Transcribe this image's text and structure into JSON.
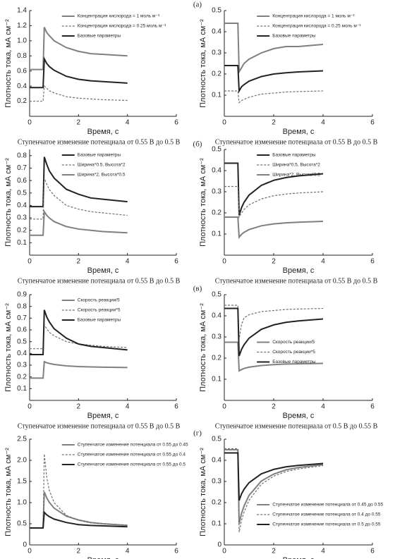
{
  "panel_labels": [
    "(а)",
    "(б)",
    "(в)",
    "(г)"
  ],
  "chart_data": [
    {
      "type": "line",
      "xlabel": "Время, с",
      "ylabel": "Плотность тока, мА см⁻²",
      "caption": "Ступенчатое изменение потенциала от 0.55 В до 0.5 В",
      "legend": "upper right",
      "xlim": [
        0,
        6
      ],
      "xticks": [
        0,
        2,
        4,
        6
      ],
      "ylim": [
        0,
        1.4
      ],
      "yticks": [
        0.2,
        0.4,
        0.6,
        0.8,
        {
          "value": 1,
          "label": "1.0"
        },
        1.2,
        1.4
      ],
      "x": [
        0,
        0.55,
        0.6,
        0.7,
        0.8,
        1,
        1.5,
        2,
        2.5,
        3,
        4
      ],
      "series": [
        {
          "name": "Концентрация кислорода = 1 моль м⁻³",
          "color": "#808080",
          "style": "solid",
          "values": [
            0.62,
            0.62,
            1.18,
            1.11,
            1.07,
            1.0,
            0.91,
            0.86,
            0.83,
            0.82,
            0.8
          ]
        },
        {
          "name": "Концентрация кислорода = 0.25 моль м⁻³",
          "color": "#707070",
          "style": "dashed",
          "values": [
            0.2,
            0.2,
            0.4,
            0.37,
            0.34,
            0.31,
            0.26,
            0.24,
            0.23,
            0.22,
            0.21
          ]
        },
        {
          "name": "Базовые параметры",
          "color": "#222222",
          "style": "solid",
          "values": [
            0.38,
            0.38,
            0.76,
            0.7,
            0.66,
            0.61,
            0.53,
            0.49,
            0.47,
            0.46,
            0.44
          ]
        }
      ]
    },
    {
      "type": "line",
      "xlabel": "Время, с",
      "ylabel": "Плотность тока, мА см⁻²",
      "caption": "Ступенчатое изменение потенциала от 0.55 В до 0.5 В",
      "legend": "upper right",
      "xlim": [
        0,
        6
      ],
      "xticks": [
        0,
        2,
        4,
        6
      ],
      "ylim": [
        0,
        0.5
      ],
      "yticks": [
        0.1,
        0.2,
        0.3,
        0.4,
        0.5
      ],
      "x": [
        0,
        0.55,
        0.6,
        0.7,
        0.8,
        1,
        1.5,
        2,
        2.5,
        3,
        4
      ],
      "series": [
        {
          "name": "Концентрация кислорода = 1 моль м⁻³",
          "color": "#808080",
          "style": "solid",
          "values": [
            0.44,
            0.44,
            0.21,
            0.23,
            0.25,
            0.27,
            0.3,
            0.32,
            0.33,
            0.33,
            0.34
          ]
        },
        {
          "name": "Концентрация кислорода = 0.25 моль м⁻³",
          "color": "#707070",
          "style": "dashed",
          "values": [
            0.12,
            0.12,
            0.065,
            0.075,
            0.08,
            0.09,
            0.105,
            0.11,
            0.115,
            0.117,
            0.12
          ]
        },
        {
          "name": "Базовые параметры",
          "color": "#222222",
          "style": "solid",
          "values": [
            0.24,
            0.24,
            0.12,
            0.14,
            0.15,
            0.166,
            0.188,
            0.2,
            0.206,
            0.21,
            0.215
          ]
        }
      ]
    },
    {
      "type": "line",
      "xlabel": "Время, с",
      "ylabel": "Плотность тока, мА см⁻²",
      "caption": "Ступенчатое изменение потенциала от 0.55 В до 0.5 В",
      "legend": "upper right",
      "xlim": [
        0,
        6
      ],
      "xticks": [
        0,
        2,
        4,
        6
      ],
      "ylim": [
        0,
        0.85
      ],
      "yticks": [
        0.1,
        0.2,
        0.3,
        0.4,
        0.5,
        0.6,
        0.7,
        0.8
      ],
      "x": [
        0,
        0.55,
        0.6,
        0.7,
        0.8,
        1,
        1.5,
        2,
        2.5,
        3,
        4
      ],
      "series": [
        {
          "name": "Базовые параметры",
          "color": "#222222",
          "style": "solid",
          "values": [
            0.39,
            0.39,
            0.79,
            0.73,
            0.68,
            0.62,
            0.53,
            0.49,
            0.46,
            0.45,
            0.43
          ]
        },
        {
          "name": "Ширина*0.5,  Высота*2",
          "color": "#707070",
          "style": "dashed",
          "values": [
            0.29,
            0.29,
            0.62,
            0.57,
            0.53,
            0.48,
            0.4,
            0.37,
            0.35,
            0.34,
            0.32
          ]
        },
        {
          "name": "Ширина*2,  Высота*0.5",
          "color": "#808080",
          "style": "solid",
          "values": [
            0.16,
            0.16,
            0.35,
            0.32,
            0.3,
            0.27,
            0.23,
            0.21,
            0.2,
            0.19,
            0.18
          ]
        }
      ]
    },
    {
      "type": "line",
      "xlabel": "Время, с",
      "ylabel": "Плотность тока, мА см⁻²",
      "caption": "Ступенчатое изменение потенциала от 0.55 В до 0.5 В",
      "legend": "upper right",
      "xlim": [
        0,
        6
      ],
      "xticks": [
        0,
        2,
        4,
        6
      ],
      "ylim": [
        0,
        0.5
      ],
      "yticks": [
        0.1,
        0.2,
        0.3,
        0.4,
        0.5
      ],
      "x": [
        0,
        0.55,
        0.6,
        0.7,
        0.8,
        1,
        1.5,
        2,
        2.5,
        3,
        4
      ],
      "series": [
        {
          "name": "Базовые параметры",
          "color": "#222222",
          "style": "solid",
          "values": [
            0.435,
            0.435,
            0.19,
            0.225,
            0.25,
            0.284,
            0.33,
            0.354,
            0.367,
            0.375,
            0.385
          ]
        },
        {
          "name": "Ширина*0.5,  Высота*2",
          "color": "#707070",
          "style": "dashed",
          "values": [
            0.325,
            0.325,
            0.18,
            0.2,
            0.216,
            0.238,
            0.266,
            0.281,
            0.289,
            0.294,
            0.3
          ]
        },
        {
          "name": "Ширина*2,  Высота*0.5",
          "color": "#808080",
          "style": "solid",
          "values": [
            0.18,
            0.18,
            0.085,
            0.099,
            0.108,
            0.121,
            0.139,
            0.148,
            0.153,
            0.156,
            0.16
          ]
        }
      ]
    },
    {
      "type": "line",
      "xlabel": "Время, с",
      "ylabel": "Плотность тока, мА см⁻²",
      "caption": "Ступенчатое изменение потенциала от 0.55 В до 0.5 В",
      "legend": "upper right",
      "xlim": [
        0,
        6
      ],
      "xticks": [
        0,
        2,
        4,
        6
      ],
      "ylim": [
        0,
        0.9
      ],
      "yticks": [
        0.1,
        0.2,
        0.3,
        0.4,
        0.5,
        0.6,
        0.7,
        0.8,
        0.9
      ],
      "x": [
        0,
        0.55,
        0.6,
        0.7,
        0.8,
        1,
        1.5,
        2,
        2.5,
        3,
        4
      ],
      "series": [
        {
          "name": "Скорость реакции/5",
          "color": "#808080",
          "style": "solid",
          "values": [
            0.19,
            0.19,
            0.33,
            0.32,
            0.315,
            0.306,
            0.294,
            0.288,
            0.285,
            0.283,
            0.28
          ]
        },
        {
          "name": "Скорость реакции*5",
          "color": "#707070",
          "style": "dashed",
          "values": [
            0.44,
            0.44,
            0.64,
            0.61,
            0.58,
            0.55,
            0.5,
            0.48,
            0.47,
            0.46,
            0.45
          ]
        },
        {
          "name": "Базовые параметры",
          "color": "#222222",
          "style": "solid",
          "values": [
            0.39,
            0.39,
            0.77,
            0.71,
            0.67,
            0.61,
            0.53,
            0.48,
            0.46,
            0.45,
            0.43
          ]
        }
      ]
    },
    {
      "type": "line",
      "xlabel": "Время, с",
      "ylabel": "Плотность тока, мА см⁻²",
      "caption": "Ступенчатое изменение потенциала от 0.5 В до 0.55 В",
      "legend": "center right",
      "xlim": [
        0,
        6
      ],
      "xticks": [
        0,
        2,
        4,
        6
      ],
      "ylim": [
        0,
        0.5
      ],
      "yticks": [
        0.1,
        0.2,
        0.3,
        0.4,
        0.5
      ],
      "x": [
        0,
        0.55,
        0.6,
        0.7,
        0.8,
        1,
        1.5,
        2,
        2.5,
        3,
        4
      ],
      "series": [
        {
          "name": "Скорость реакции/5",
          "color": "#808080",
          "style": "solid",
          "values": [
            0.275,
            0.275,
            0.14,
            0.146,
            0.151,
            0.157,
            0.165,
            0.169,
            0.172,
            0.173,
            0.175
          ]
        },
        {
          "name": "Скорость реакции*5",
          "color": "#707070",
          "style": "dashed",
          "values": [
            0.45,
            0.45,
            0.29,
            0.36,
            0.39,
            0.405,
            0.42,
            0.425,
            0.43,
            0.432,
            0.435
          ]
        },
        {
          "name": "Базовые параметры",
          "color": "#222222",
          "style": "solid",
          "values": [
            0.435,
            0.435,
            0.21,
            0.242,
            0.263,
            0.294,
            0.336,
            0.357,
            0.369,
            0.376,
            0.385
          ]
        }
      ]
    },
    {
      "type": "line",
      "xlabel": "Время, с",
      "ylabel": "Плотность тока, мА см⁻²",
      "legend": "upper right",
      "xlim": [
        0,
        6
      ],
      "xticks": [
        0,
        2,
        4,
        6
      ],
      "ylim": [
        0,
        2.5
      ],
      "yticks": [
        0,
        0.5,
        {
          "value": 1,
          "label": "1.0"
        },
        1.5,
        {
          "value": 2,
          "label": "2.0"
        },
        2.5
      ],
      "x": [
        0,
        0.55,
        0.6,
        0.7,
        0.8,
        1,
        1.5,
        2,
        2.5,
        3,
        4
      ],
      "series": [
        {
          "name": "Ступенчатое изменение потенциала от 0.55 до 0.45",
          "color": "#808080",
          "style": "solid",
          "values": [
            0.4,
            0.4,
            1.25,
            1.11,
            1.01,
            0.87,
            0.68,
            0.59,
            0.53,
            0.5,
            0.46
          ]
        },
        {
          "name": "Ступенчатое изменение потенциала от 0.55 до 0.4",
          "color": "#707070",
          "style": "dashed",
          "values": [
            0.4,
            0.4,
            2.15,
            1.6,
            1.3,
            1.0,
            0.7,
            0.58,
            0.52,
            0.5,
            0.47
          ]
        },
        {
          "name": "Ступенчатое изменение потенциала от 0.55 до 0.5",
          "color": "#222222",
          "style": "solid",
          "values": [
            0.4,
            0.4,
            0.77,
            0.71,
            0.67,
            0.61,
            0.53,
            0.48,
            0.46,
            0.45,
            0.43
          ]
        }
      ]
    },
    {
      "type": "line",
      "xlabel": "Время, с",
      "ylabel": "Плотность тока, мА см⁻²",
      "legend": "lower right",
      "xlim": [
        0,
        6
      ],
      "xticks": [
        0,
        2,
        4,
        6
      ],
      "ylim": [
        0,
        0.5
      ],
      "yticks": [
        0,
        0.1,
        0.2,
        0.3,
        0.4,
        0.5
      ],
      "x": [
        0,
        0.55,
        0.6,
        0.7,
        0.8,
        1,
        1.5,
        2,
        2.5,
        3,
        4
      ],
      "series": [
        {
          "name": "Ступенчатое изменение потенциала от 0.45 до 0.55",
          "color": "#808080",
          "style": "solid",
          "values": [
            0.45,
            0.45,
            0.1,
            0.15,
            0.184,
            0.234,
            0.302,
            0.335,
            0.355,
            0.366,
            0.38
          ]
        },
        {
          "name": "Ступенчатое изменение потенциала от 0.4 до 0.55",
          "color": "#707070",
          "style": "dashed",
          "values": [
            0.455,
            0.455,
            0.06,
            0.117,
            0.155,
            0.211,
            0.287,
            0.325,
            0.347,
            0.359,
            0.375
          ]
        },
        {
          "name": "Ступенчатое изменение потенциала от 0.5 до 0.55",
          "color": "#222222",
          "style": "solid",
          "values": [
            0.435,
            0.435,
            0.21,
            0.242,
            0.263,
            0.294,
            0.336,
            0.357,
            0.369,
            0.376,
            0.385
          ]
        }
      ]
    }
  ]
}
